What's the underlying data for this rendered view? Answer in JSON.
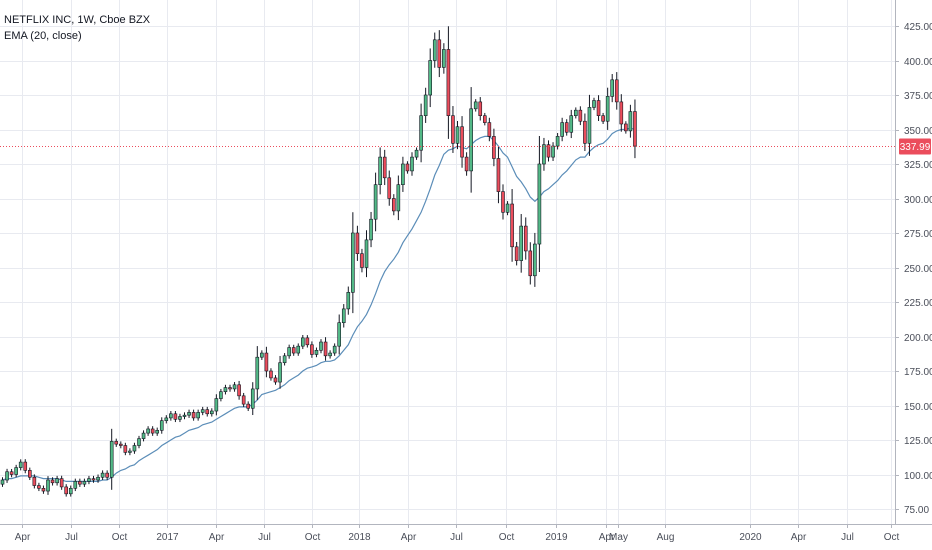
{
  "legend": {
    "symbol": "NETFLIX INC, 1W, Cboe BZX",
    "indicator": "EMA (20, close)"
  },
  "colors": {
    "up": "#53b987",
    "down": "#eb4d5c",
    "wick": "#131722",
    "ema": "#5b8db8",
    "price_line": "#eb4d5c",
    "grid": "#e8eaf0"
  },
  "chart_data": {
    "type": "candlestick",
    "title": "NETFLIX INC, 1W, Cboe BZX",
    "indicator": "EMA (20, close)",
    "ylim": [
      68,
      428
    ],
    "yticks": [
      "75.00",
      "100.00",
      "125.00",
      "150.00",
      "175.00",
      "200.00",
      "225.00",
      "250.00",
      "275.00",
      "300.00",
      "325.00",
      "350.00",
      "375.00",
      "400.00",
      "425.00"
    ],
    "xticks": [
      "Apr",
      "Jul",
      "Oct",
      "2017",
      "Apr",
      "Jul",
      "Oct",
      "2018",
      "Apr",
      "Jul",
      "Oct",
      "2019",
      "Apr",
      "May",
      "Aug",
      "2020",
      "Apr",
      "Jul",
      "Oct"
    ],
    "last_price": "337.99",
    "grid": true,
    "closes": [
      96,
      102,
      100,
      105,
      109,
      103,
      98,
      92,
      90,
      88,
      96,
      94,
      97,
      91,
      86,
      90,
      95,
      93,
      95,
      97,
      96,
      98,
      101,
      98,
      124,
      122,
      121,
      116,
      117,
      121,
      126,
      130,
      133,
      130,
      132,
      139,
      141,
      144,
      140,
      142,
      143,
      145,
      141,
      145,
      147,
      144,
      146,
      155,
      160,
      163,
      162,
      165,
      157,
      151,
      148,
      162,
      185,
      188,
      175,
      170,
      167,
      181,
      186,
      192,
      188,
      193,
      199,
      194,
      187,
      190,
      196,
      186,
      188,
      193,
      210,
      220,
      232,
      275,
      260,
      250,
      270,
      285,
      310,
      330,
      315,
      300,
      291,
      310,
      325,
      320,
      330,
      335,
      360,
      375,
      400,
      415,
      395,
      408,
      360,
      340,
      352,
      330,
      320,
      365,
      370,
      360,
      355,
      345,
      329,
      305,
      290,
      296,
      265,
      255,
      280,
      262,
      244,
      267,
      325,
      339,
      330,
      338,
      345,
      355,
      348,
      360,
      364,
      356,
      340,
      366,
      371,
      360,
      356,
      374,
      386,
      370,
      354,
      349,
      363,
      338
    ],
    "ema": [
      96,
      97,
      97,
      98,
      99,
      99,
      99,
      99,
      98,
      97,
      97,
      97,
      97,
      96,
      95,
      95,
      95,
      95,
      95,
      95,
      95,
      95,
      96,
      96,
      98,
      101,
      103,
      104,
      106,
      107,
      110,
      112,
      114,
      116,
      118,
      121,
      123,
      125,
      127,
      128,
      130,
      132,
      133,
      134,
      136,
      137,
      138,
      140,
      142,
      144,
      146,
      148,
      149,
      149,
      149,
      151,
      154,
      158,
      159,
      160,
      161,
      163,
      165,
      168,
      170,
      172,
      175,
      177,
      178,
      179,
      181,
      182,
      182,
      183,
      186,
      190,
      194,
      201,
      207,
      211,
      216,
      223,
      231,
      240,
      247,
      252,
      256,
      261,
      268,
      273,
      278,
      284,
      290,
      298,
      307,
      317,
      324,
      332,
      335,
      336,
      338,
      337,
      336,
      339,
      342,
      344,
      345,
      345,
      342,
      338,
      333,
      330,
      323,
      316,
      312,
      307,
      301,
      298,
      301,
      305,
      307,
      310,
      313,
      317,
      320,
      324,
      328,
      330,
      330,
      334,
      337,
      339,
      340,
      343,
      347,
      349,
      350,
      350,
      351,
      350
    ]
  }
}
